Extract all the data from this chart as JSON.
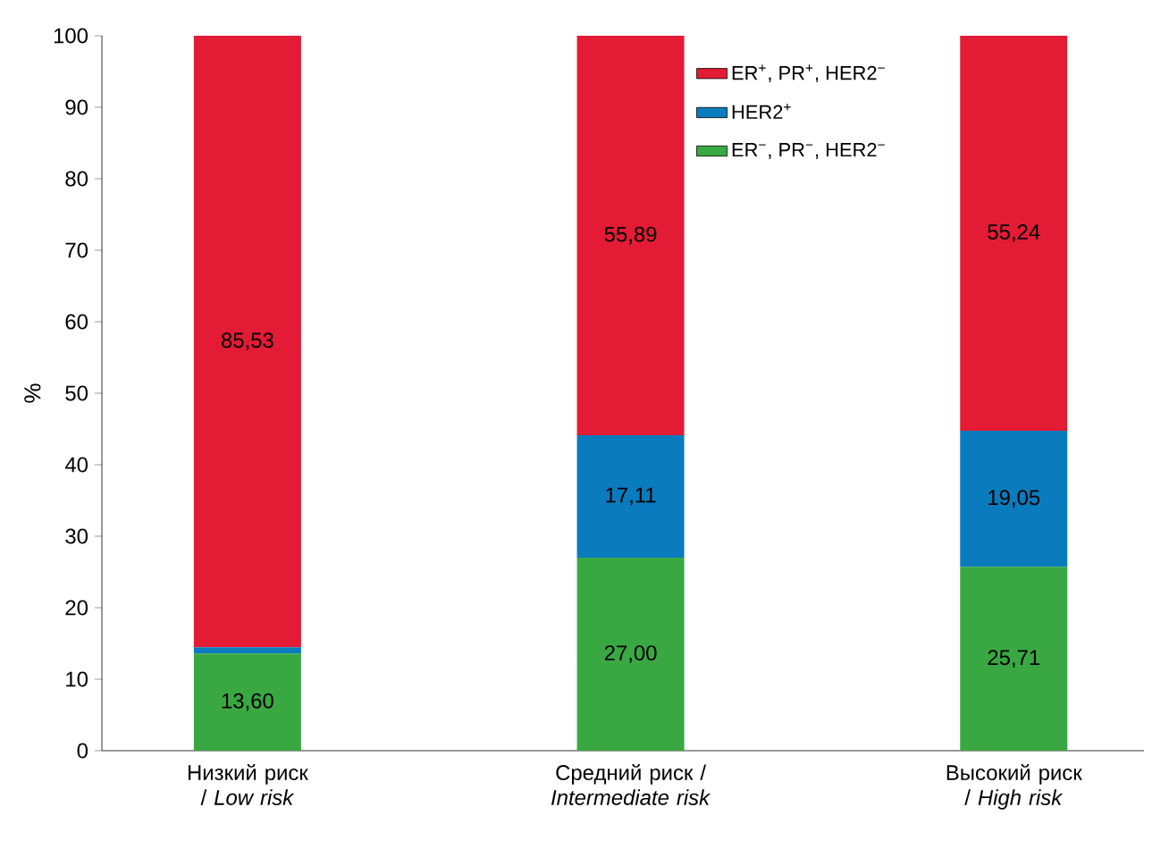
{
  "chart_data": {
    "type": "bar",
    "stacked": true,
    "ylabel": "%",
    "categories": [
      "Низкий риск / *Low risk*",
      "Средний риск / *Intermediate risk*",
      "Высокий риск / *High risk*"
    ],
    "series": [
      {
        "name": "ER$^{−}$, PR$^{−}$, HER2$^{−}$",
        "color": "#3aa842",
        "values": [
          13.6,
          27.0,
          25.71
        ],
        "value_labels": [
          "13,60",
          "27,00",
          "25,71"
        ]
      },
      {
        "name": "HER2$^{+}$",
        "color": "#0a7bbd",
        "values": [
          0.87,
          17.11,
          19.05
        ],
        "value_labels": [
          null,
          "17,11",
          "19,05"
        ]
      },
      {
        "name": "ER$^{+}$, PR$^{+}$, HER2$^{−}$",
        "color": "#e31b34",
        "values": [
          85.53,
          55.89,
          55.24
        ],
        "value_labels": [
          "85,53",
          "55,89",
          "55,24"
        ]
      }
    ],
    "ylim": [
      0,
      100
    ],
    "yticks": [
      0,
      10,
      20,
      30,
      40,
      50,
      60,
      70,
      80,
      90,
      100
    ],
    "grid": false,
    "legend": "top right"
  }
}
